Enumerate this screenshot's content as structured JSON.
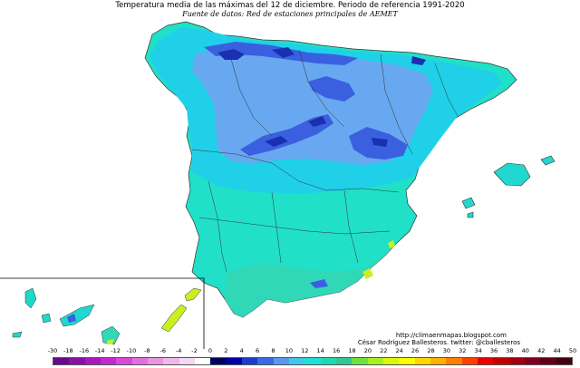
{
  "header": {
    "title": "Temperatura media de las máximas del 12 de diciembre. Periodo de referencia 1991-2020",
    "source": "Fuente de datos: Red de estaciones principales de AEMET"
  },
  "credits": {
    "url": "http://climaenmapas.blogspot.com",
    "author": "César Rodríguez Ballesteros. twitter: @cballesteros"
  },
  "legend": {
    "unit_values": [
      "-30",
      "-18",
      "-16",
      "-14",
      "-12",
      "-10",
      "-8",
      "-6",
      "-4",
      "-2",
      "0",
      "2",
      "4",
      "6",
      "8",
      "10",
      "12",
      "14",
      "16",
      "18",
      "20",
      "22",
      "24",
      "26",
      "28",
      "30",
      "32",
      "34",
      "36",
      "38",
      "40",
      "42",
      "44",
      "50"
    ],
    "colors": [
      "#6a0a8a",
      "#8a10a8",
      "#a818c0",
      "#c428d0",
      "#d84ad6",
      "#e070dc",
      "#e896e0",
      "#eeb8e8",
      "#f2d8f0",
      "#ffffff",
      "#000060",
      "#0000a8",
      "#1a3ccc",
      "#3a6ae0",
      "#5a98f0",
      "#40c8e8",
      "#20e0d8",
      "#20d8b0",
      "#30c890",
      "#70e040",
      "#a8f020",
      "#d8f810",
      "#ffff00",
      "#ffd800",
      "#ffb000",
      "#ff8000",
      "#ff4000",
      "#e80000",
      "#c00000",
      "#a00010",
      "#800020",
      "#600018",
      "#400010"
    ]
  },
  "colors": {
    "sea": "#ffffff",
    "warm_cyan": "#20e0c8",
    "cyan": "#20d8e8",
    "light_blue": "#60a8f0",
    "mid_blue": "#4068e8",
    "deep_blue": "#1830b8",
    "yellow_green": "#c8f020",
    "border": "#333333"
  }
}
